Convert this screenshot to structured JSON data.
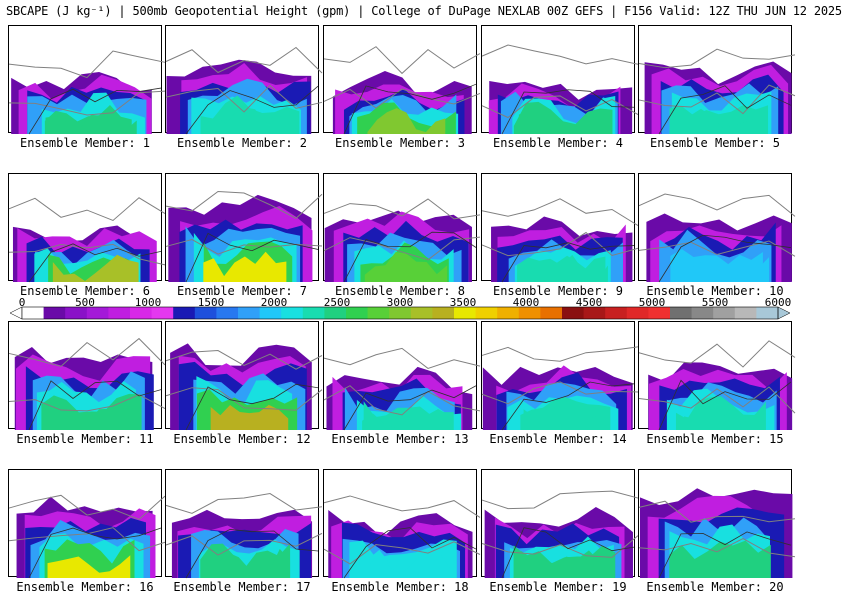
{
  "title": "SBCAPE (J kg⁻¹) | 500mb Geopotential Height (gpm) | College of DuPage NEXLAB 00Z GEFS | F156 Valid: 12Z THU JUN 12 2025",
  "panel_label_prefix": "Ensemble Member: ",
  "members": [
    "1",
    "2",
    "3",
    "4",
    "5",
    "6",
    "7",
    "8",
    "9",
    "10",
    "11",
    "12",
    "13",
    "14",
    "15",
    "16",
    "17",
    "18",
    "19",
    "20"
  ],
  "colorbar": {
    "ticks": [
      "0",
      "500",
      "1000",
      "1500",
      "2000",
      "2500",
      "3000",
      "3500",
      "4000",
      "4500",
      "5000",
      "5500",
      "6000"
    ],
    "colors": [
      "#ffffff",
      "#6a0aa8",
      "#8a12c8",
      "#a41ad8",
      "#c01ee0",
      "#d828e8",
      "#e438f0",
      "#1a1ab4",
      "#1e50dc",
      "#2878f0",
      "#30a0f8",
      "#20c8f8",
      "#18e0e0",
      "#18dcb0",
      "#20d080",
      "#30d050",
      "#58d038",
      "#80c830",
      "#a8c028",
      "#b8b020",
      "#e8e800",
      "#f0d000",
      "#f0b000",
      "#f09000",
      "#e87000",
      "#8a1010",
      "#a81818",
      "#c82020",
      "#e02828",
      "#f03030",
      "#707070",
      "#888888",
      "#a0a0a0",
      "#b8b8b8",
      "#a8c8d8"
    ],
    "tick_value_step": 500,
    "color_value_step": 166.67
  },
  "panel_cape": [
    {
      "fill": 0.5,
      "peak": 2400
    },
    {
      "fill": 0.6,
      "peak": 2300
    },
    {
      "fill": 0.45,
      "peak": 2900
    },
    {
      "fill": 0.42,
      "peak": 2500
    },
    {
      "fill": 0.58,
      "peak": 2300
    },
    {
      "fill": 0.45,
      "peak": 3100
    },
    {
      "fill": 0.7,
      "peak": 3400
    },
    {
      "fill": 0.6,
      "peak": 2800
    },
    {
      "fill": 0.5,
      "peak": 2200
    },
    {
      "fill": 0.55,
      "peak": 2000
    },
    {
      "fill": 0.65,
      "peak": 2400
    },
    {
      "fill": 0.7,
      "peak": 3300
    },
    {
      "fill": 0.45,
      "peak": 2200
    },
    {
      "fill": 0.55,
      "peak": 2200
    },
    {
      "fill": 0.55,
      "peak": 2300
    },
    {
      "fill": 0.65,
      "peak": 3500
    },
    {
      "fill": 0.55,
      "peak": 2400
    },
    {
      "fill": 0.5,
      "peak": 2100
    },
    {
      "fill": 0.55,
      "peak": 2400
    },
    {
      "fill": 0.75,
      "peak": 2500
    }
  ]
}
